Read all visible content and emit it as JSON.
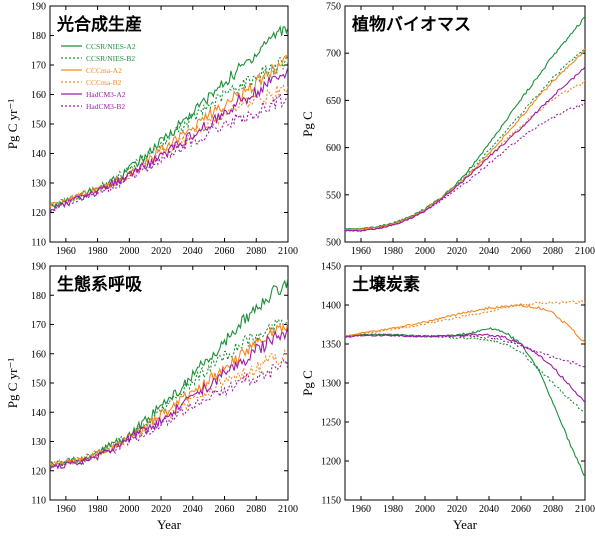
{
  "colors": {
    "CCSR/NIES-A2": "#1f8f3a",
    "CCSR/NIES-B2": "#1f8f3a",
    "CCCma-A2": "#f08a24",
    "CCCma-B2": "#f08a24",
    "HadCM3-A2": "#9a1fa8",
    "HadCM3-B2": "#9a1fa8"
  },
  "chart_data": [
    {
      "type": "line",
      "title": "光合成生産",
      "xlabel": "",
      "ylabel": "Pg C yr⁻¹",
      "xlim": [
        1950,
        2100
      ],
      "ylim": [
        110,
        190
      ],
      "xticks": [
        1960,
        1980,
        2000,
        2020,
        2040,
        2060,
        2080,
        2100
      ],
      "yticks": [
        110,
        120,
        130,
        140,
        150,
        160,
        170,
        180,
        190
      ],
      "legend": "top-left",
      "x": [
        1950,
        1960,
        1970,
        1980,
        1990,
        2000,
        2010,
        2020,
        2030,
        2040,
        2050,
        2060,
        2070,
        2080,
        2090,
        2100
      ],
      "series": [
        {
          "name": "CCSR/NIES-A2",
          "style": "solid",
          "values": [
            122,
            124,
            126,
            128,
            131,
            135,
            139,
            144,
            149,
            154,
            159,
            164,
            169,
            174,
            180,
            183
          ]
        },
        {
          "name": "CCSR/NIES-B2",
          "style": "dotted",
          "values": [
            122,
            124,
            126,
            128,
            131,
            135,
            139,
            143,
            148,
            152,
            156,
            160,
            163,
            166,
            169,
            171
          ]
        },
        {
          "name": "CCCma-A2",
          "style": "solid",
          "values": [
            122,
            124,
            126,
            128,
            130,
            133,
            137,
            141,
            145,
            149,
            153,
            157,
            160,
            164,
            168,
            172
          ]
        },
        {
          "name": "CCCma-B2",
          "style": "dotted",
          "values": [
            122,
            124,
            126,
            128,
            130,
            133,
            136,
            140,
            143,
            146,
            150,
            153,
            156,
            158,
            160,
            162
          ]
        },
        {
          "name": "HadCM3-A2",
          "style": "solid",
          "values": [
            121,
            123,
            125,
            127,
            130,
            133,
            136,
            139,
            143,
            146,
            150,
            154,
            158,
            161,
            165,
            168
          ]
        },
        {
          "name": "HadCM3-B2",
          "style": "dotted",
          "values": [
            121,
            123,
            125,
            127,
            129,
            132,
            135,
            138,
            141,
            144,
            147,
            150,
            152,
            154,
            157,
            159
          ]
        }
      ]
    },
    {
      "type": "line",
      "title": "植物バイオマス",
      "xlabel": "",
      "ylabel": "Pg C",
      "xlim": [
        1950,
        2100
      ],
      "ylim": [
        500,
        750
      ],
      "xticks": [
        1960,
        1980,
        2000,
        2020,
        2040,
        2060,
        2080,
        2100
      ],
      "yticks": [
        500,
        550,
        600,
        650,
        700,
        750
      ],
      "x": [
        1950,
        1960,
        1970,
        1980,
        1990,
        2000,
        2010,
        2020,
        2030,
        2040,
        2050,
        2060,
        2070,
        2080,
        2090,
        2100
      ],
      "series": [
        {
          "name": "CCSR/NIES-A2",
          "style": "solid",
          "values": [
            514,
            514,
            516,
            520,
            526,
            535,
            547,
            562,
            582,
            604,
            627,
            651,
            674,
            697,
            718,
            738
          ]
        },
        {
          "name": "CCSR/NIES-B2",
          "style": "dotted",
          "values": [
            514,
            514,
            516,
            520,
            526,
            535,
            547,
            561,
            578,
            597,
            616,
            636,
            655,
            674,
            690,
            705
          ]
        },
        {
          "name": "CCCma-A2",
          "style": "solid",
          "values": [
            513,
            513,
            515,
            519,
            525,
            534,
            546,
            560,
            576,
            594,
            613,
            632,
            652,
            670,
            687,
            703
          ]
        },
        {
          "name": "CCCma-B2",
          "style": "dotted",
          "values": [
            513,
            513,
            515,
            519,
            525,
            534,
            546,
            560,
            575,
            591,
            607,
            623,
            638,
            651,
            661,
            670
          ]
        },
        {
          "name": "HadCM3-A2",
          "style": "solid",
          "values": [
            512,
            512,
            514,
            518,
            524,
            533,
            545,
            559,
            574,
            590,
            605,
            621,
            638,
            655,
            670,
            684
          ]
        },
        {
          "name": "HadCM3-B2",
          "style": "dotted",
          "values": [
            512,
            512,
            514,
            518,
            524,
            533,
            544,
            556,
            569,
            583,
            597,
            610,
            622,
            632,
            640,
            646
          ]
        }
      ]
    },
    {
      "type": "line",
      "title": "生態系呼吸",
      "xlabel": "Year",
      "ylabel": "Pg C yr⁻¹",
      "xlim": [
        1950,
        2100
      ],
      "ylim": [
        110,
        190
      ],
      "xticks": [
        1960,
        1980,
        2000,
        2020,
        2040,
        2060,
        2080,
        2100
      ],
      "yticks": [
        110,
        120,
        130,
        140,
        150,
        160,
        170,
        180,
        190
      ],
      "x": [
        1950,
        1960,
        1970,
        1980,
        1990,
        2000,
        2010,
        2020,
        2030,
        2040,
        2050,
        2060,
        2070,
        2080,
        2090,
        2100
      ],
      "series": [
        {
          "name": "CCSR/NIES-A2",
          "style": "solid",
          "values": [
            122,
            123,
            124,
            126,
            129,
            132,
            137,
            142,
            147,
            153,
            158,
            164,
            170,
            176,
            181,
            184
          ]
        },
        {
          "name": "CCSR/NIES-B2",
          "style": "dotted",
          "values": [
            122,
            123,
            124,
            126,
            129,
            132,
            136,
            141,
            146,
            151,
            155,
            159,
            163,
            166,
            169,
            171
          ]
        },
        {
          "name": "CCCma-A2",
          "style": "solid",
          "values": [
            122,
            123,
            124,
            126,
            128,
            131,
            135,
            139,
            143,
            147,
            151,
            155,
            159,
            163,
            167,
            170
          ]
        },
        {
          "name": "CCCma-B2",
          "style": "dotted",
          "values": [
            122,
            123,
            124,
            126,
            128,
            131,
            134,
            138,
            141,
            144,
            147,
            150,
            153,
            155,
            158,
            160
          ]
        },
        {
          "name": "HadCM3-A2",
          "style": "solid",
          "values": [
            121,
            122,
            123,
            125,
            128,
            131,
            134,
            137,
            141,
            145,
            149,
            153,
            157,
            161,
            165,
            168
          ]
        },
        {
          "name": "HadCM3-B2",
          "style": "dotted",
          "values": [
            121,
            122,
            123,
            125,
            127,
            130,
            133,
            136,
            139,
            142,
            145,
            147,
            150,
            152,
            154,
            156
          ]
        }
      ]
    },
    {
      "type": "line",
      "title": "土壌炭素",
      "xlabel": "Year",
      "ylabel": "Pg C",
      "xlim": [
        1950,
        2100
      ],
      "ylim": [
        1150,
        1450
      ],
      "xticks": [
        1960,
        1980,
        2000,
        2020,
        2040,
        2060,
        2080,
        2100
      ],
      "yticks": [
        1150,
        1200,
        1250,
        1300,
        1350,
        1400,
        1450
      ],
      "x": [
        1950,
        1960,
        1970,
        1980,
        1990,
        2000,
        2010,
        2020,
        2030,
        2040,
        2050,
        2060,
        2070,
        2080,
        2090,
        2100
      ],
      "series": [
        {
          "name": "CCSR/NIES-A2",
          "style": "solid",
          "values": [
            1360,
            1362,
            1362,
            1362,
            1361,
            1360,
            1360,
            1361,
            1365,
            1370,
            1365,
            1350,
            1320,
            1275,
            1225,
            1180
          ]
        },
        {
          "name": "CCSR/NIES-B2",
          "style": "dotted",
          "values": [
            1360,
            1362,
            1362,
            1362,
            1361,
            1360,
            1359,
            1358,
            1357,
            1355,
            1350,
            1340,
            1320,
            1300,
            1280,
            1262
          ]
        },
        {
          "name": "CCCma-A2",
          "style": "solid",
          "values": [
            1360,
            1364,
            1367,
            1370,
            1374,
            1378,
            1383,
            1388,
            1392,
            1396,
            1398,
            1400,
            1397,
            1390,
            1372,
            1352
          ]
        },
        {
          "name": "CCCma-B2",
          "style": "dotted",
          "values": [
            1360,
            1363,
            1366,
            1369,
            1372,
            1376,
            1380,
            1384,
            1388,
            1392,
            1396,
            1400,
            1402,
            1403,
            1404,
            1404
          ]
        },
        {
          "name": "HadCM3-A2",
          "style": "solid",
          "values": [
            1359,
            1361,
            1361,
            1361,
            1360,
            1360,
            1360,
            1361,
            1362,
            1362,
            1358,
            1350,
            1338,
            1320,
            1298,
            1275
          ]
        },
        {
          "name": "HadCM3-B2",
          "style": "dotted",
          "values": [
            1359,
            1361,
            1361,
            1361,
            1360,
            1360,
            1360,
            1360,
            1360,
            1358,
            1354,
            1347,
            1340,
            1333,
            1327,
            1322
          ]
        }
      ]
    }
  ]
}
